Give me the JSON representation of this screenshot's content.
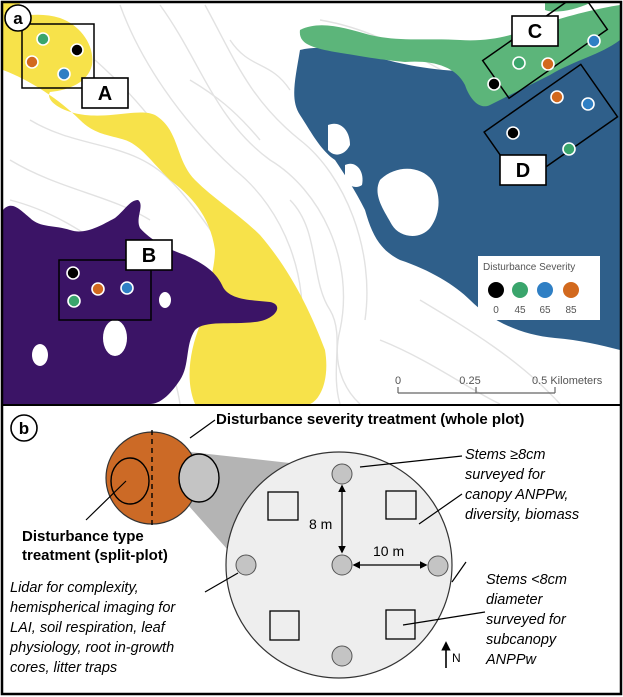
{
  "panel_a": {
    "panel_letter": "a",
    "site_labels": [
      "A",
      "B",
      "C",
      "D"
    ],
    "legend": {
      "title": "Disturbance Severity",
      "values": [
        "0",
        "45",
        "65",
        "85"
      ],
      "colors": [
        "#000000",
        "#3aa56c",
        "#2f7fc4",
        "#d2691e"
      ]
    },
    "scale_bar": {
      "ticks": [
        "0",
        "0.25",
        "0.5 Kilometers"
      ]
    },
    "colors": {
      "yellow_region": "#f7e24a",
      "purple_region": "#3b1466",
      "green_region": "#5cb57a",
      "blue_region": "#2f5f8a",
      "background": "#ffffff",
      "contour": "#e2e2e2"
    }
  },
  "panel_b": {
    "panel_letter": "b",
    "severity_label": "Disturbance severity treatment (whole plot)",
    "type_label_lines": [
      "Disturbance type",
      "treatment (split-plot)"
    ],
    "left_notes": [
      "Lidar for complexity,",
      "hemispherical imaging for",
      "LAI, soil respiration, leaf",
      "physiology, root in-growth",
      "cores, litter traps"
    ],
    "stems_large_lines": [
      "Stems ≥8cm",
      "surveyed for",
      "canopy ANPPw,",
      "diversity, biomass"
    ],
    "stems_small_lines": [
      "Stems <8cm",
      "diameter",
      "surveyed for",
      "subcanopy",
      "ANPPw"
    ],
    "dim_8m": "8 m",
    "dim_10m": "10 m",
    "north_label": "N",
    "colors": {
      "plot_orange": "#cc6a26",
      "plot_circle_fill": "#eeeeee",
      "subplot_grey": "#c4c4c4",
      "wedge_grey": "#b4b4b4"
    }
  }
}
